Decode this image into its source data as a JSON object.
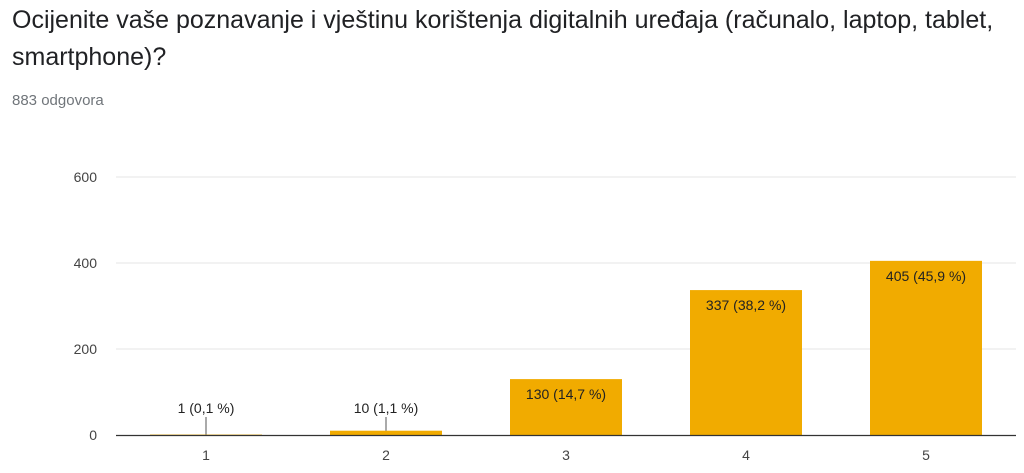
{
  "header": {
    "title": "Ocijenite vaše poznavanje i vještinu korištenja digitalnih uređaja (računalo, laptop, tablet, smartphone)?",
    "response_count": "883 odgovora"
  },
  "chart_data": {
    "type": "bar",
    "categories": [
      "1",
      "2",
      "3",
      "4",
      "5"
    ],
    "values": [
      1,
      10,
      130,
      337,
      405
    ],
    "data_labels": [
      "1 (0,1 %)",
      "10 (1,1 %)",
      "130 (14,7 %)",
      "337 (38,2 %)",
      "405 (45,9 %)"
    ],
    "y_ticks": [
      0,
      200,
      400,
      600
    ],
    "ylim": [
      0,
      600
    ],
    "grid": true,
    "bar_color": "#F1AB00",
    "grid_color": "#e6e6e6",
    "axis_color": "#333333"
  }
}
